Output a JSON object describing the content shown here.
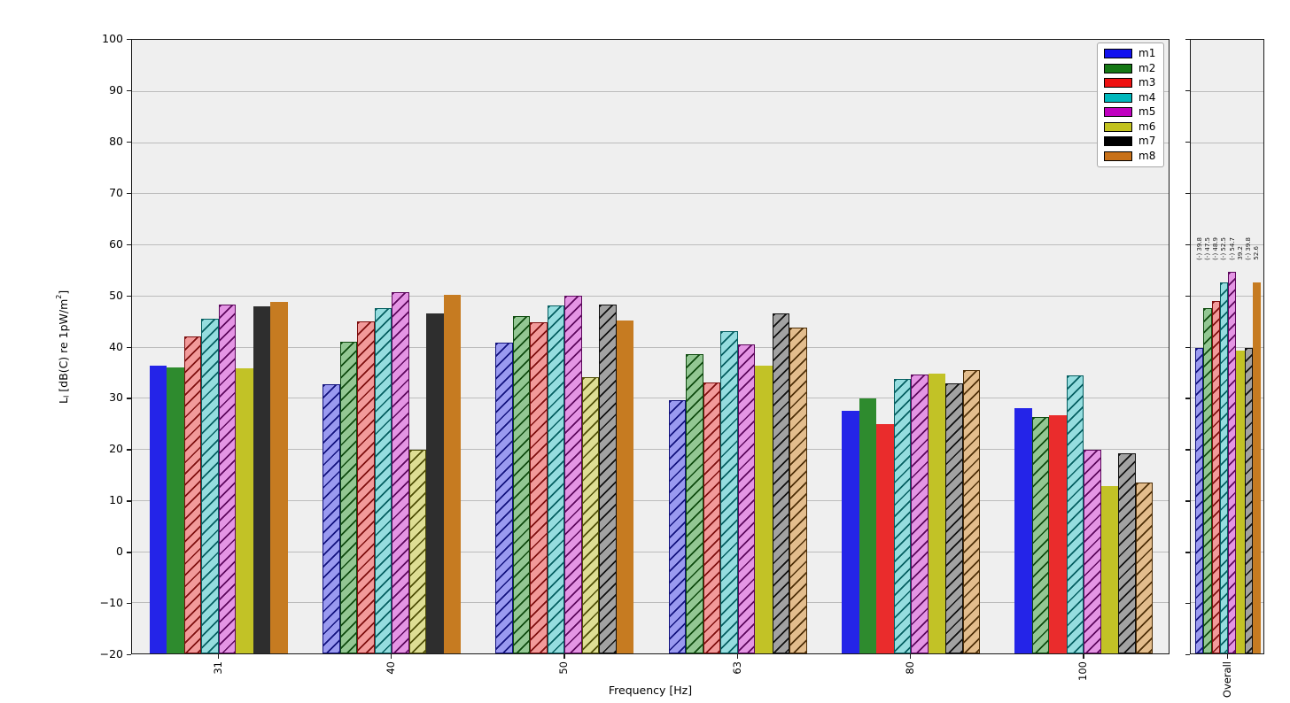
{
  "figure": {
    "background": "#ffffff",
    "axes_background": "#efefef",
    "grid_color": "#bcbcbc",
    "spine_color": "#1a1a1a"
  },
  "chart_data": {
    "type": "bar",
    "title": "",
    "xlabel": "Frequency [Hz]",
    "ylabel_parts": {
      "pre": "L",
      "sub": "I",
      "mid": " [dB(C) re 1pW/m",
      "sup": "2",
      "post": "]"
    },
    "ylim": [
      -20,
      100
    ],
    "yticks": [
      -20,
      -10,
      0,
      10,
      20,
      30,
      40,
      50,
      60,
      70,
      80,
      90,
      100
    ],
    "grid": true,
    "legend_position": "upper right",
    "categories": [
      "31",
      "40",
      "50",
      "63",
      "80",
      "100"
    ],
    "overall_category": "Overall",
    "overall_label_anchor_db": 57,
    "series": [
      {
        "name": "m1",
        "color": "#2424e8",
        "legend_color": "#1212ee",
        "face_hatched": "#9a9af0",
        "hatch_line": "#12127e",
        "values": [
          36.3,
          32.7,
          40.8,
          29.5,
          27.5,
          28.0
        ],
        "hatched": [
          false,
          true,
          true,
          true,
          false,
          false
        ],
        "overall_value": 39.8,
        "overall_hatched": true,
        "overall_text": "(-) 39.8"
      },
      {
        "name": "m2",
        "color": "#2e8b2e",
        "legend_color": "#157815",
        "face_hatched": "#93c793",
        "hatch_line": "#0e4a0e",
        "values": [
          36.0,
          41.0,
          46.0,
          38.5,
          29.9,
          26.2
        ],
        "hatched": [
          false,
          true,
          true,
          true,
          false,
          true
        ],
        "overall_value": 47.5,
        "overall_hatched": true,
        "overall_text": "(-) 47.5"
      },
      {
        "name": "m3",
        "color": "#ea2c2c",
        "legend_color": "#ee1111",
        "face_hatched": "#f29a9a",
        "hatch_line": "#7e0e0e",
        "values": [
          42.0,
          45.0,
          44.8,
          33.0,
          24.9,
          26.6
        ],
        "hatched": [
          true,
          true,
          true,
          true,
          false,
          false
        ],
        "overall_value": 48.9,
        "overall_hatched": true,
        "overall_text": "(-) 48.9"
      },
      {
        "name": "m4",
        "color": "#17b8bc",
        "legend_color": "#00b8bc",
        "face_hatched": "#95dddf",
        "hatch_line": "#045e60",
        "values": [
          45.4,
          47.6,
          48.1,
          43.0,
          33.6,
          34.4
        ],
        "hatched": [
          true,
          true,
          true,
          true,
          true,
          true
        ],
        "overall_value": 52.5,
        "overall_hatched": true,
        "overall_text": "(-) 52.5"
      },
      {
        "name": "m5",
        "color": "#bf20bf",
        "legend_color": "#c000c0",
        "face_hatched": "#e495e4",
        "hatch_line": "#5c075c",
        "values": [
          48.3,
          50.6,
          49.9,
          40.5,
          34.5,
          19.9
        ],
        "hatched": [
          true,
          true,
          true,
          true,
          true,
          true
        ],
        "overall_value": 54.7,
        "overall_hatched": true,
        "overall_text": "(-) 54.7"
      },
      {
        "name": "m6",
        "color": "#c2c226",
        "legend_color": "#c2c21e",
        "face_hatched": "#dede94",
        "hatch_line": "#4f4f07",
        "values": [
          35.8,
          19.9,
          34.1,
          36.3,
          34.7,
          12.8
        ],
        "hatched": [
          false,
          true,
          true,
          false,
          false,
          false
        ],
        "overall_value": 39.2,
        "overall_hatched": false,
        "overall_text": "39.2"
      },
      {
        "name": "m7",
        "color": "#2e2e2e",
        "legend_color": "#000000",
        "face_hatched": "#a2a2a2",
        "hatch_line": "#101010",
        "values": [
          47.8,
          46.5,
          48.2,
          46.5,
          32.8,
          19.1
        ],
        "hatched": [
          false,
          false,
          true,
          true,
          true,
          true
        ],
        "overall_value": 39.8,
        "overall_hatched": true,
        "overall_text": "(-) 39.8"
      },
      {
        "name": "m8",
        "color": "#c67b21",
        "legend_color": "#c87119",
        "face_hatched": "#e3bd8d",
        "hatch_line": "#4d2e07",
        "values": [
          48.8,
          50.1,
          45.1,
          43.8,
          35.4,
          13.5
        ],
        "hatched": [
          false,
          false,
          false,
          true,
          true,
          true
        ],
        "overall_value": 52.6,
        "overall_hatched": false,
        "overall_text": "52.6"
      }
    ]
  }
}
